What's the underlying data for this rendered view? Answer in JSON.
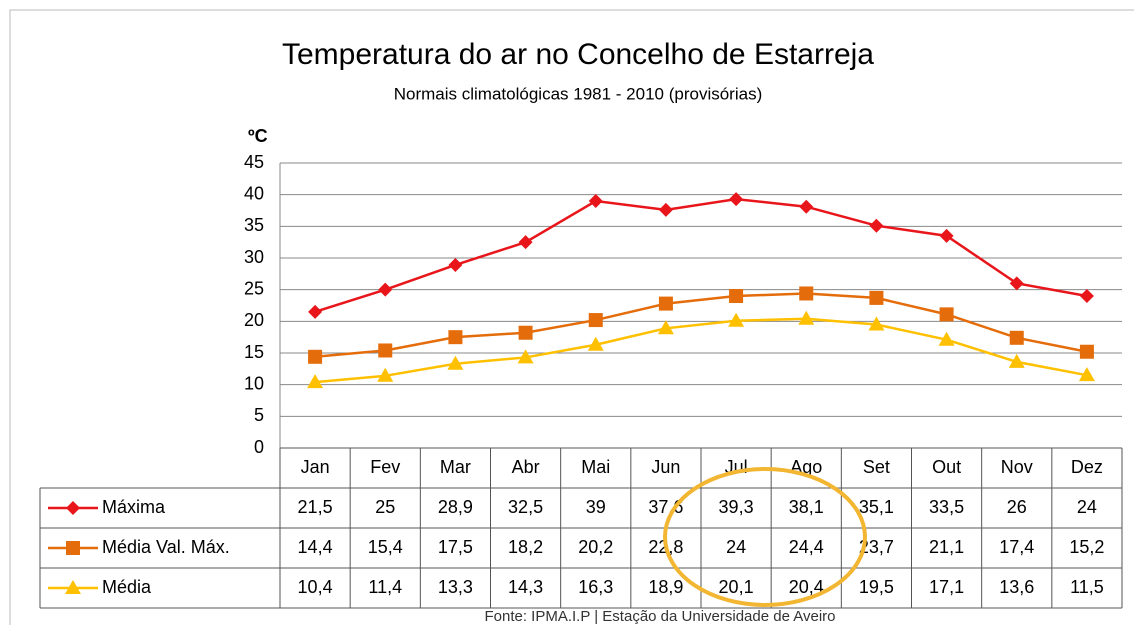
{
  "chart_data": {
    "type": "line",
    "title": "Temperatura do ar no Concelho de Estarreja",
    "subtitle": "Normais climatológicas 1981 - 2010 (provisórias)",
    "y_label": "ºC",
    "source": "Fonte: IPMA.I.P | Estação da Universidade de Aveiro",
    "categories": [
      "Jan",
      "Fev",
      "Mar",
      "Abr",
      "Mai",
      "Jun",
      "Jul",
      "Ago",
      "Set",
      "Out",
      "Nov",
      "Dez"
    ],
    "series": [
      {
        "name": "Máxima",
        "color": "#e8161b",
        "marker": "diamond",
        "values": [
          21.5,
          25,
          28.9,
          32.5,
          39,
          37.6,
          39.3,
          38.1,
          35.1,
          33.5,
          26,
          24
        ],
        "value_labels": [
          "21,5",
          "25",
          "28,9",
          "32,5",
          "39",
          "37,6",
          "39,3",
          "38,1",
          "35,1",
          "33,5",
          "26",
          "24"
        ]
      },
      {
        "name": "Média Val. Máx.",
        "color": "#e46c0a",
        "marker": "square",
        "values": [
          14.4,
          15.4,
          17.5,
          18.2,
          20.2,
          22.8,
          24,
          24.4,
          23.7,
          21.1,
          17.4,
          15.2
        ],
        "value_labels": [
          "14,4",
          "15,4",
          "17,5",
          "18,2",
          "20,2",
          "22,8",
          "24",
          "24,4",
          "23,7",
          "21,1",
          "17,4",
          "15,2"
        ]
      },
      {
        "name": "Média",
        "color": "#ffc000",
        "marker": "triangle",
        "values": [
          10.4,
          11.4,
          13.3,
          14.3,
          16.3,
          18.9,
          20.1,
          20.4,
          19.5,
          17.1,
          13.6,
          11.5
        ],
        "value_labels": [
          "10,4",
          "11,4",
          "13,3",
          "14,3",
          "16,3",
          "18,9",
          "20,1",
          "20,4",
          "19,5",
          "17,1",
          "13,6",
          "11,5"
        ]
      }
    ],
    "ylim": [
      0,
      45
    ],
    "yticks": [
      0,
      5,
      10,
      15,
      20,
      25,
      30,
      35,
      40,
      45
    ],
    "grid": true
  }
}
